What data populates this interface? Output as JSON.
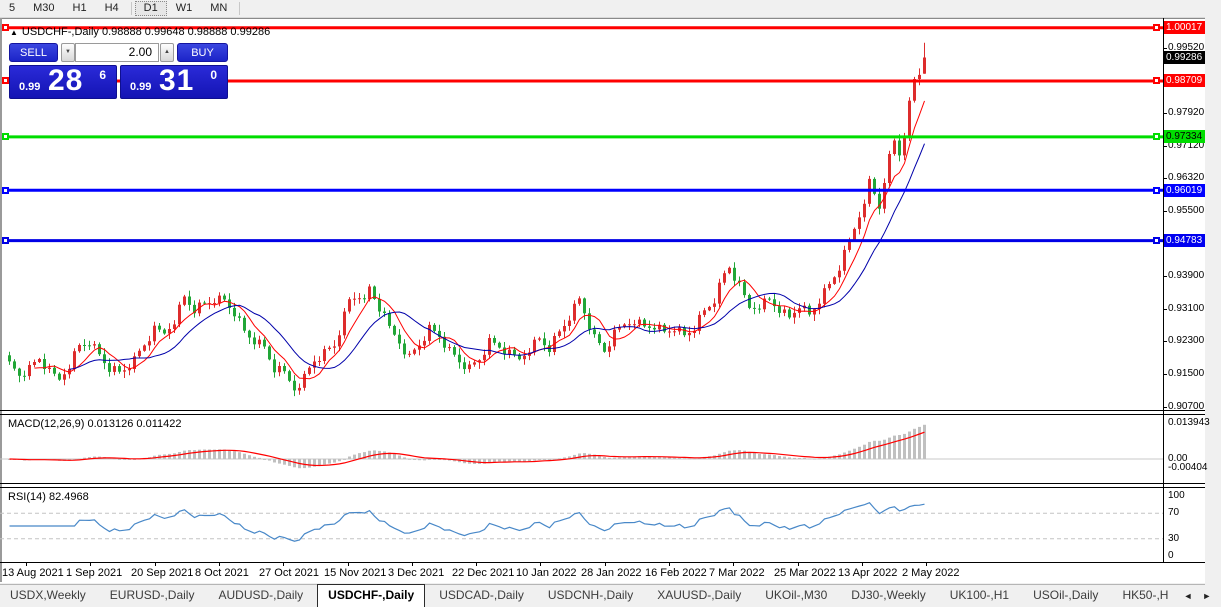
{
  "toolbar": {
    "timeframes": [
      "5",
      "M30",
      "H1",
      "H4",
      "D1",
      "W1",
      "MN"
    ],
    "active": "D1"
  },
  "symbol_info": {
    "arrow": "▲",
    "text": "USDCHF-,Daily  0.98888 0.99648 0.98888 0.99286"
  },
  "trade_panel": {
    "sell_label": "SELL",
    "buy_label": "BUY",
    "volume": "2.00",
    "spin_down": "▼",
    "spin_up": "▲",
    "sell_price_prefix": "0.99",
    "sell_price_big": "28",
    "sell_price_sup": "6",
    "buy_price_prefix": "0.99",
    "buy_price_big": "31",
    "buy_price_sup": "0"
  },
  "price_axis": {
    "ticks": [
      "0.99520",
      "0.97920",
      "0.97120",
      "0.96320",
      "0.95500",
      "0.93900",
      "0.93100",
      "0.92300",
      "0.91500",
      "0.90700"
    ],
    "badges": [
      {
        "label": "1.00017",
        "bg": "#FF0000",
        "fg": "#FFFFFF"
      },
      {
        "label": "0.99286",
        "bg": "#000000",
        "fg": "#FFFFFF"
      },
      {
        "label": "0.98709",
        "bg": "#FF0000",
        "fg": "#FFFFFF"
      },
      {
        "label": "0.97334",
        "bg": "#00DD00",
        "fg": "#000000"
      },
      {
        "label": "0.96019",
        "bg": "#0000FF",
        "fg": "#FFFFFF"
      },
      {
        "label": "0.94783",
        "bg": "#0000F0",
        "fg": "#FFFFFF"
      }
    ]
  },
  "macd_panel": {
    "label": "MACD(12,26,9) 0.013126 0.011422",
    "axis_labels": [
      "0.013943",
      "0.00",
      "-0.00404"
    ]
  },
  "rsi_panel": {
    "label": "RSI(14) 82.4968",
    "axis_labels": [
      "100",
      "70",
      "30",
      "0"
    ]
  },
  "date_axis": [
    "13 Aug 2021",
    "1 Sep 2021",
    "20 Sep 2021",
    "8 Oct 2021",
    "27 Oct 2021",
    "15 Nov 2021",
    "3 Dec 2021",
    "22 Dec 2021",
    "10 Jan 2022",
    "28 Jan 2022",
    "16 Feb 2022",
    "7 Mar 2022",
    "25 Mar 2022",
    "13 Apr 2022",
    "2 May 2022"
  ],
  "tabs": {
    "items": [
      "USDX,Weekly",
      "EURUSD-,Daily",
      "AUDUSD-,Daily",
      "USDCHF-,Daily",
      "USDCAD-,Daily",
      "USDCNH-,Daily",
      "XAUUSD-,Daily",
      "UKOil-,M30",
      "DJ30-,Weekly",
      "UK100-,H1",
      "USOil-,Daily",
      "HK50-,H"
    ],
    "active": "USDCHF-,Daily",
    "scroll_left": "◄",
    "scroll_right": "►"
  },
  "chart_data": {
    "type": "candlestick",
    "symbol": "USDCHF-",
    "timeframe": "Daily",
    "ohlc_current": {
      "open": 0.98888,
      "high": 0.99648,
      "low": 0.98888,
      "close": 0.99286
    },
    "bid": 0.99286,
    "bull_color": "#DD2C2C",
    "bear_color": "#21A637",
    "ma_fast_color": "#FF0000",
    "ma_slow_color": "#0000AA",
    "horizontal_lines": [
      {
        "price": 1.00017,
        "color": "#FF0000"
      },
      {
        "price": 0.98709,
        "color": "#FF0000"
      },
      {
        "price": 0.97334,
        "color": "#00DD00"
      },
      {
        "price": 0.96019,
        "color": "#0000FF"
      },
      {
        "price": 0.94783,
        "color": "#0000E6"
      }
    ],
    "price_keyframes": [
      [
        0,
        0.917
      ],
      [
        2,
        0.9148
      ],
      [
        4,
        0.916
      ],
      [
        6,
        0.9188
      ],
      [
        8,
        0.9152
      ],
      [
        10,
        0.9136
      ],
      [
        12,
        0.9176
      ],
      [
        14,
        0.922
      ],
      [
        16,
        0.9232
      ],
      [
        18,
        0.9196
      ],
      [
        20,
        0.9166
      ],
      [
        22,
        0.9152
      ],
      [
        25,
        0.9182
      ],
      [
        27,
        0.9222
      ],
      [
        29,
        0.9256
      ],
      [
        31,
        0.925
      ],
      [
        33,
        0.9286
      ],
      [
        35,
        0.934
      ],
      [
        37,
        0.9312
      ],
      [
        39,
        0.9322
      ],
      [
        41,
        0.9336
      ],
      [
        43,
        0.933
      ],
      [
        45,
        0.9302
      ],
      [
        47,
        0.9252
      ],
      [
        49,
        0.9232
      ],
      [
        51,
        0.9212
      ],
      [
        53,
        0.9162
      ],
      [
        55,
        0.915
      ],
      [
        57,
        0.9116
      ],
      [
        59,
        0.9142
      ],
      [
        61,
        0.9186
      ],
      [
        63,
        0.9202
      ],
      [
        65,
        0.9222
      ],
      [
        66,
        0.9256
      ],
      [
        68,
        0.933
      ],
      [
        70,
        0.9346
      ],
      [
        71,
        0.9322
      ],
      [
        72,
        0.936
      ],
      [
        74,
        0.9312
      ],
      [
        76,
        0.9262
      ],
      [
        78,
        0.9232
      ],
      [
        80,
        0.9192
      ],
      [
        82,
        0.9226
      ],
      [
        84,
        0.9262
      ],
      [
        86,
        0.9246
      ],
      [
        88,
        0.9206
      ],
      [
        90,
        0.9182
      ],
      [
        92,
        0.9162
      ],
      [
        94,
        0.9186
      ],
      [
        96,
        0.9226
      ],
      [
        98,
        0.9216
      ],
      [
        100,
        0.9196
      ],
      [
        102,
        0.9186
      ],
      [
        104,
        0.9216
      ],
      [
        106,
        0.9236
      ],
      [
        108,
        0.9216
      ],
      [
        110,
        0.9252
      ],
      [
        112,
        0.9292
      ],
      [
        114,
        0.9332
      ],
      [
        115,
        0.9302
      ],
      [
        117,
        0.9236
      ],
      [
        119,
        0.9206
      ],
      [
        121,
        0.9246
      ],
      [
        123,
        0.9272
      ],
      [
        125,
        0.9286
      ],
      [
        127,
        0.9266
      ],
      [
        129,
        0.9272
      ],
      [
        131,
        0.9252
      ],
      [
        133,
        0.9266
      ],
      [
        135,
        0.9242
      ],
      [
        137,
        0.9266
      ],
      [
        139,
        0.9302
      ],
      [
        141,
        0.9332
      ],
      [
        143,
        0.9392
      ],
      [
        144,
        0.9412
      ],
      [
        146,
        0.9362
      ],
      [
        148,
        0.9312
      ],
      [
        150,
        0.9322
      ],
      [
        152,
        0.9332
      ],
      [
        154,
        0.9312
      ],
      [
        156,
        0.9286
      ],
      [
        158,
        0.9322
      ],
      [
        160,
        0.9292
      ],
      [
        162,
        0.9332
      ],
      [
        164,
        0.9366
      ],
      [
        166,
        0.9412
      ],
      [
        168,
        0.9472
      ],
      [
        170,
        0.9542
      ],
      [
        171,
        0.9582
      ],
      [
        172,
        0.9622
      ],
      [
        173,
        0.9592
      ],
      [
        174,
        0.9562
      ],
      [
        175,
        0.9632
      ],
      [
        176,
        0.9682
      ],
      [
        177,
        0.9722
      ],
      [
        178,
        0.9692
      ],
      [
        179,
        0.9742
      ],
      [
        180,
        0.9812
      ],
      [
        181,
        0.9872
      ],
      [
        182,
        0.98888
      ],
      [
        183,
        0.99286
      ]
    ],
    "macd": {
      "histogram_color": "#C0C0C0",
      "signal_color": "#FF0000",
      "current_main": 0.013126,
      "current_signal": 0.011422,
      "scale_max": 0.013943,
      "scale_min": -0.00404
    },
    "rsi": {
      "color": "#4888C8",
      "period": 14,
      "current": 82.4968,
      "levels": [
        70,
        30
      ]
    }
  }
}
